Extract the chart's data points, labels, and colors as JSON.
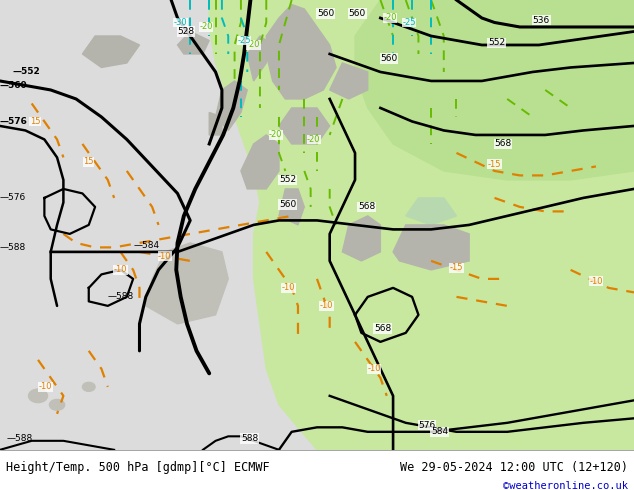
{
  "title_left": "Height/Temp. 500 hPa [gdmp][°C] ECMWF",
  "title_right": "We 29-05-2024 12:00 UTC (12+120)",
  "credit": "©weatheronline.co.uk",
  "white_bg": "#ffffff",
  "fig_width": 6.34,
  "fig_height": 4.9,
  "dpi": 100,
  "bottom_bar_height": 0.082,
  "title_fontsize": 9,
  "credit_fontsize": 8,
  "credit_color": "#0000cc",
  "geo_color": "#000000",
  "orange_color": "#e08000",
  "green_color": "#66bb00",
  "cyan_color": "#00bbbb",
  "bg_gray": "#dcdcdc",
  "bg_green_light": "#c8e8a0",
  "bg_green_mid": "#b8e090",
  "land_gray": "#b0b0a8"
}
